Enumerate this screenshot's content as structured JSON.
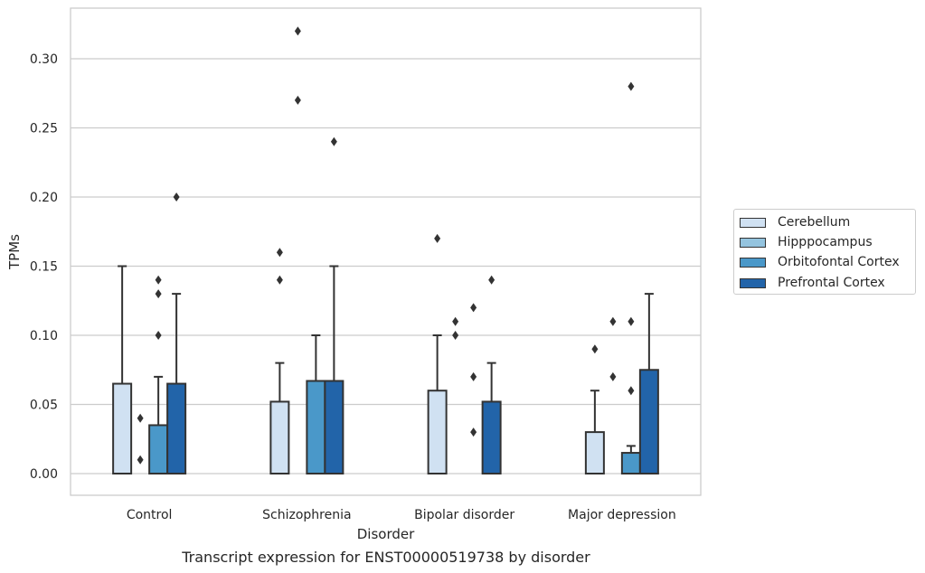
{
  "chart_data": {
    "type": "bar",
    "title": "",
    "caption": "Transcript expression for ENST00000519738 by disorder",
    "xlabel": "Disorder",
    "ylabel": "TPMs",
    "categories": [
      "Control",
      "Schizophrenia",
      "Bipolar disorder",
      "Major depression"
    ],
    "yticks": [
      "0.00",
      "0.05",
      "0.10",
      "0.15",
      "0.20",
      "0.25",
      "0.30"
    ],
    "ylim": [
      -0.015,
      0.337
    ],
    "grid": "horizontal",
    "legend_position": "right",
    "series": [
      {
        "name": "Cerebellum",
        "color": "#d0e1f2",
        "values": [
          0.065,
          0.052,
          0.06,
          0.03
        ],
        "error_high": [
          0.15,
          0.08,
          0.1,
          0.06
        ],
        "outliers": [
          [],
          [
            0.14,
            0.16
          ],
          [
            0.17
          ],
          [
            0.09
          ]
        ]
      },
      {
        "name": "Hipppocampus",
        "color": "#94c4df",
        "values": [
          0.0,
          0.0,
          0.0,
          0.0
        ],
        "error_high": [
          0.0,
          0.0,
          0.0,
          0.0
        ],
        "outliers": [
          [
            0.01,
            0.04
          ],
          [
            0.27,
            0.32
          ],
          [
            0.1,
            0.11
          ],
          [
            0.07,
            0.11
          ]
        ]
      },
      {
        "name": "Orbitofontal Cortex",
        "color": "#4a98c9",
        "values": [
          0.035,
          0.067,
          0.0,
          0.015
        ],
        "error_high": [
          0.07,
          0.1,
          0.0,
          0.02
        ],
        "outliers": [
          [
            0.1,
            0.13,
            0.14
          ],
          [],
          [
            0.03,
            0.07,
            0.12
          ],
          [
            0.06,
            0.11,
            0.28
          ]
        ]
      },
      {
        "name": "Prefrontal Cortex",
        "color": "#2264a9",
        "values": [
          0.065,
          0.067,
          0.052,
          0.075
        ],
        "error_high": [
          0.13,
          0.15,
          0.08,
          0.13
        ],
        "outliers": [
          [
            0.2
          ],
          [
            0.24
          ],
          [
            0.14
          ],
          []
        ]
      }
    ]
  }
}
